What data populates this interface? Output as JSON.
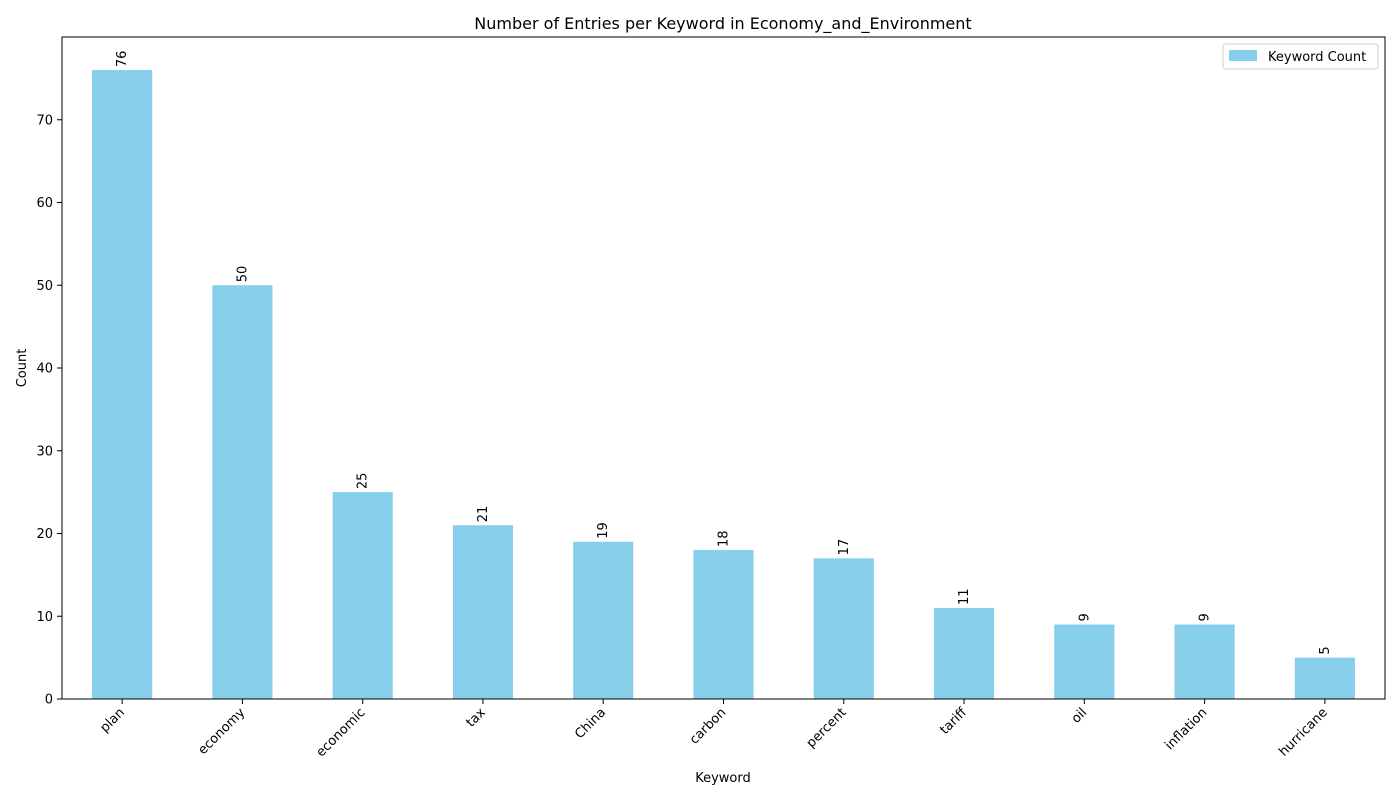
{
  "chart_data": {
    "type": "bar",
    "title": "Number of Entries per Keyword in Economy_and_Environment",
    "xlabel": "Keyword",
    "ylabel": "Count",
    "categories": [
      "plan",
      "economy",
      "economic",
      "tax",
      "China",
      "carbon",
      "percent",
      "tariff",
      "oil",
      "inflation",
      "hurricane"
    ],
    "series": [
      {
        "name": "Keyword Count",
        "values": [
          76,
          50,
          25,
          21,
          19,
          18,
          17,
          11,
          9,
          9,
          5
        ],
        "color": "#87CEEB"
      }
    ],
    "ylim": [
      0,
      80
    ],
    "yticks": [
      0,
      10,
      20,
      30,
      40,
      50,
      60,
      70
    ],
    "grid": false,
    "legend_position": "top-right",
    "x_tick_rotation": -45,
    "data_label_rotation": -90
  }
}
